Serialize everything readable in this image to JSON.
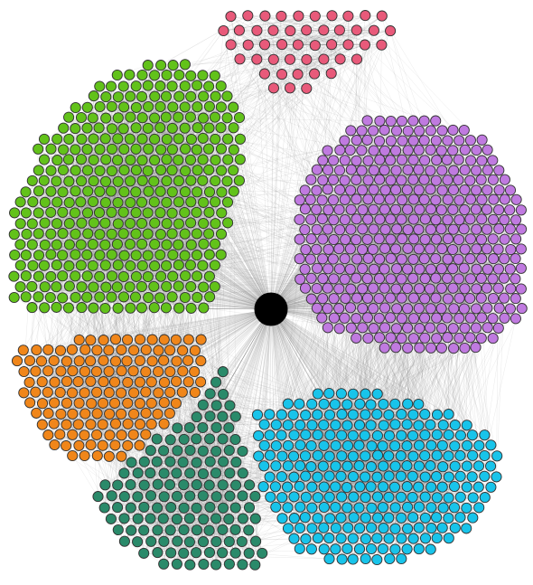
{
  "colors": {
    "background": "#ffffff",
    "edge": "#8a8a8a",
    "edge_dense": "#7f7f7f",
    "hub": "#000000",
    "node_stroke": "#333333"
  },
  "network": {
    "hub": {
      "color": "#000000"
    },
    "clusters": [
      {
        "id": "red",
        "color": "#e85a7a"
      },
      {
        "id": "green",
        "color": "#62c21a"
      },
      {
        "id": "purple",
        "color": "#c07ae0"
      },
      {
        "id": "orange",
        "color": "#f0861a"
      },
      {
        "id": "teal",
        "color": "#2a8a6a"
      },
      {
        "id": "cyan",
        "color": "#18c4ea"
      }
    ]
  }
}
